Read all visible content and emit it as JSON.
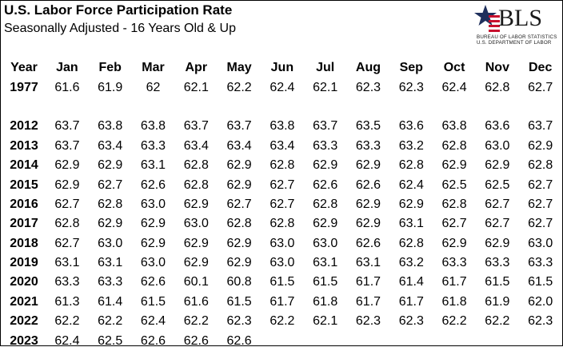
{
  "header": {
    "title": "U.S. Labor Force Participation Rate",
    "subtitle": "Seasonally Adjusted - 16 Years Old & Up"
  },
  "logo": {
    "text": "BLS",
    "line1": "BUREAU OF LABOR STATISTICS",
    "line2": "U.S. DEPARTMENT OF LABOR",
    "colors": {
      "red": "#c8102e",
      "navy": "#1f2f5c"
    }
  },
  "table": {
    "columns": [
      "Year",
      "Jan",
      "Feb",
      "Mar",
      "Apr",
      "May",
      "Jun",
      "Jul",
      "Aug",
      "Sep",
      "Oct",
      "Nov",
      "Dec"
    ],
    "rows": [
      [
        "1977",
        "61.6",
        "61.9",
        "62",
        "62.1",
        "62.2",
        "62.4",
        "62.1",
        "62.3",
        "62.3",
        "62.4",
        "62.8",
        "62.7"
      ],
      [
        "2012",
        "63.7",
        "63.8",
        "63.8",
        "63.7",
        "63.7",
        "63.8",
        "63.7",
        "63.5",
        "63.6",
        "63.8",
        "63.6",
        "63.7"
      ],
      [
        "2013",
        "63.7",
        "63.4",
        "63.3",
        "63.4",
        "63.4",
        "63.4",
        "63.3",
        "63.3",
        "63.2",
        "62.8",
        "63.0",
        "62.9"
      ],
      [
        "2014",
        "62.9",
        "62.9",
        "63.1",
        "62.8",
        "62.9",
        "62.8",
        "62.9",
        "62.9",
        "62.8",
        "62.9",
        "62.9",
        "62.8"
      ],
      [
        "2015",
        "62.9",
        "62.7",
        "62.6",
        "62.8",
        "62.9",
        "62.7",
        "62.6",
        "62.6",
        "62.4",
        "62.5",
        "62.5",
        "62.7"
      ],
      [
        "2016",
        "62.7",
        "62.8",
        "63.0",
        "62.9",
        "62.7",
        "62.7",
        "62.8",
        "62.9",
        "62.9",
        "62.8",
        "62.7",
        "62.7"
      ],
      [
        "2017",
        "62.8",
        "62.9",
        "62.9",
        "63.0",
        "62.8",
        "62.8",
        "62.9",
        "62.9",
        "63.1",
        "62.7",
        "62.7",
        "62.7"
      ],
      [
        "2018",
        "62.7",
        "63.0",
        "62.9",
        "62.9",
        "62.9",
        "63.0",
        "63.0",
        "62.6",
        "62.8",
        "62.9",
        "62.9",
        "63.0"
      ],
      [
        "2019",
        "63.1",
        "63.1",
        "63.0",
        "62.9",
        "62.9",
        "63.0",
        "63.1",
        "63.1",
        "63.2",
        "63.3",
        "63.3",
        "63.3"
      ],
      [
        "2020",
        "63.3",
        "63.3",
        "62.6",
        "60.1",
        "60.8",
        "61.5",
        "61.5",
        "61.7",
        "61.4",
        "61.7",
        "61.5",
        "61.5"
      ],
      [
        "2021",
        "61.3",
        "61.4",
        "61.5",
        "61.6",
        "61.5",
        "61.7",
        "61.8",
        "61.7",
        "61.7",
        "61.8",
        "61.9",
        "62.0"
      ],
      [
        "2022",
        "62.2",
        "62.2",
        "62.4",
        "62.2",
        "62.3",
        "62.2",
        "62.1",
        "62.3",
        "62.3",
        "62.2",
        "62.2",
        "62.3"
      ],
      [
        "2023",
        "62.4",
        "62.5",
        "62.6",
        "62.6",
        "62.6",
        "",
        "",
        "",
        "",
        "",
        "",
        ""
      ]
    ]
  }
}
